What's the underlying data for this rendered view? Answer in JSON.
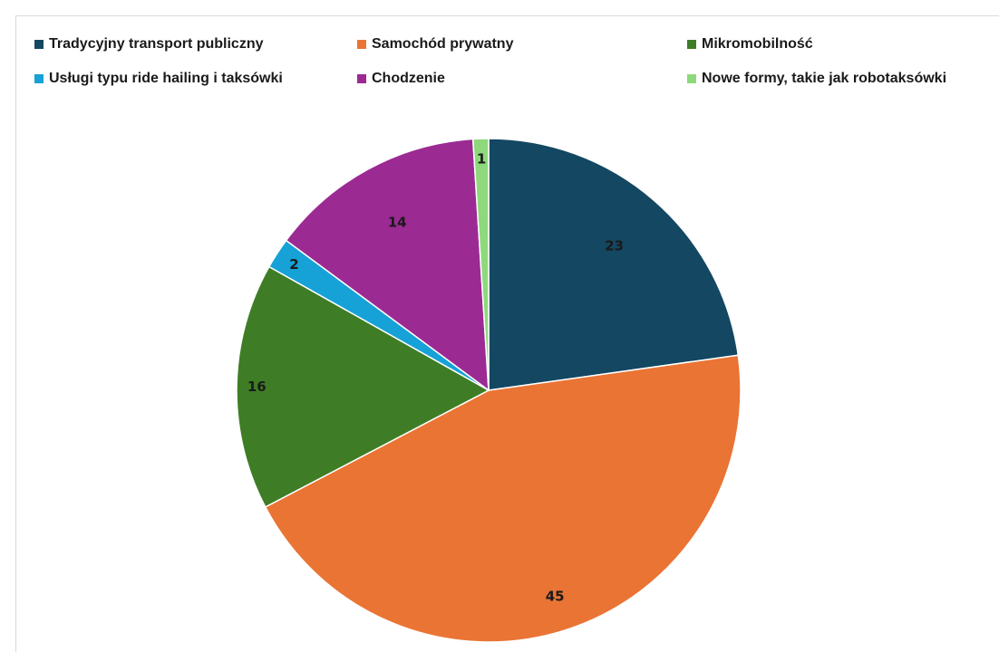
{
  "chart_data": {
    "type": "pie",
    "title": "",
    "legend_position": "top",
    "categories": [
      "Tradycyjny transport publiczny",
      "Samochód prywatny",
      "Mikromobilność",
      "Usługi typu ride hailing i taksówki",
      "Chodzenie",
      "Nowe formy, takie jak robotaksówki"
    ],
    "values": [
      23,
      45,
      16,
      2,
      14,
      1
    ],
    "colors": [
      "#134762",
      "#ea7434",
      "#3e7d25",
      "#16a1d7",
      "#9b2a93",
      "#8ed97b"
    ],
    "data_labels": [
      "23",
      "45",
      "16",
      "2",
      "14",
      "1"
    ]
  }
}
